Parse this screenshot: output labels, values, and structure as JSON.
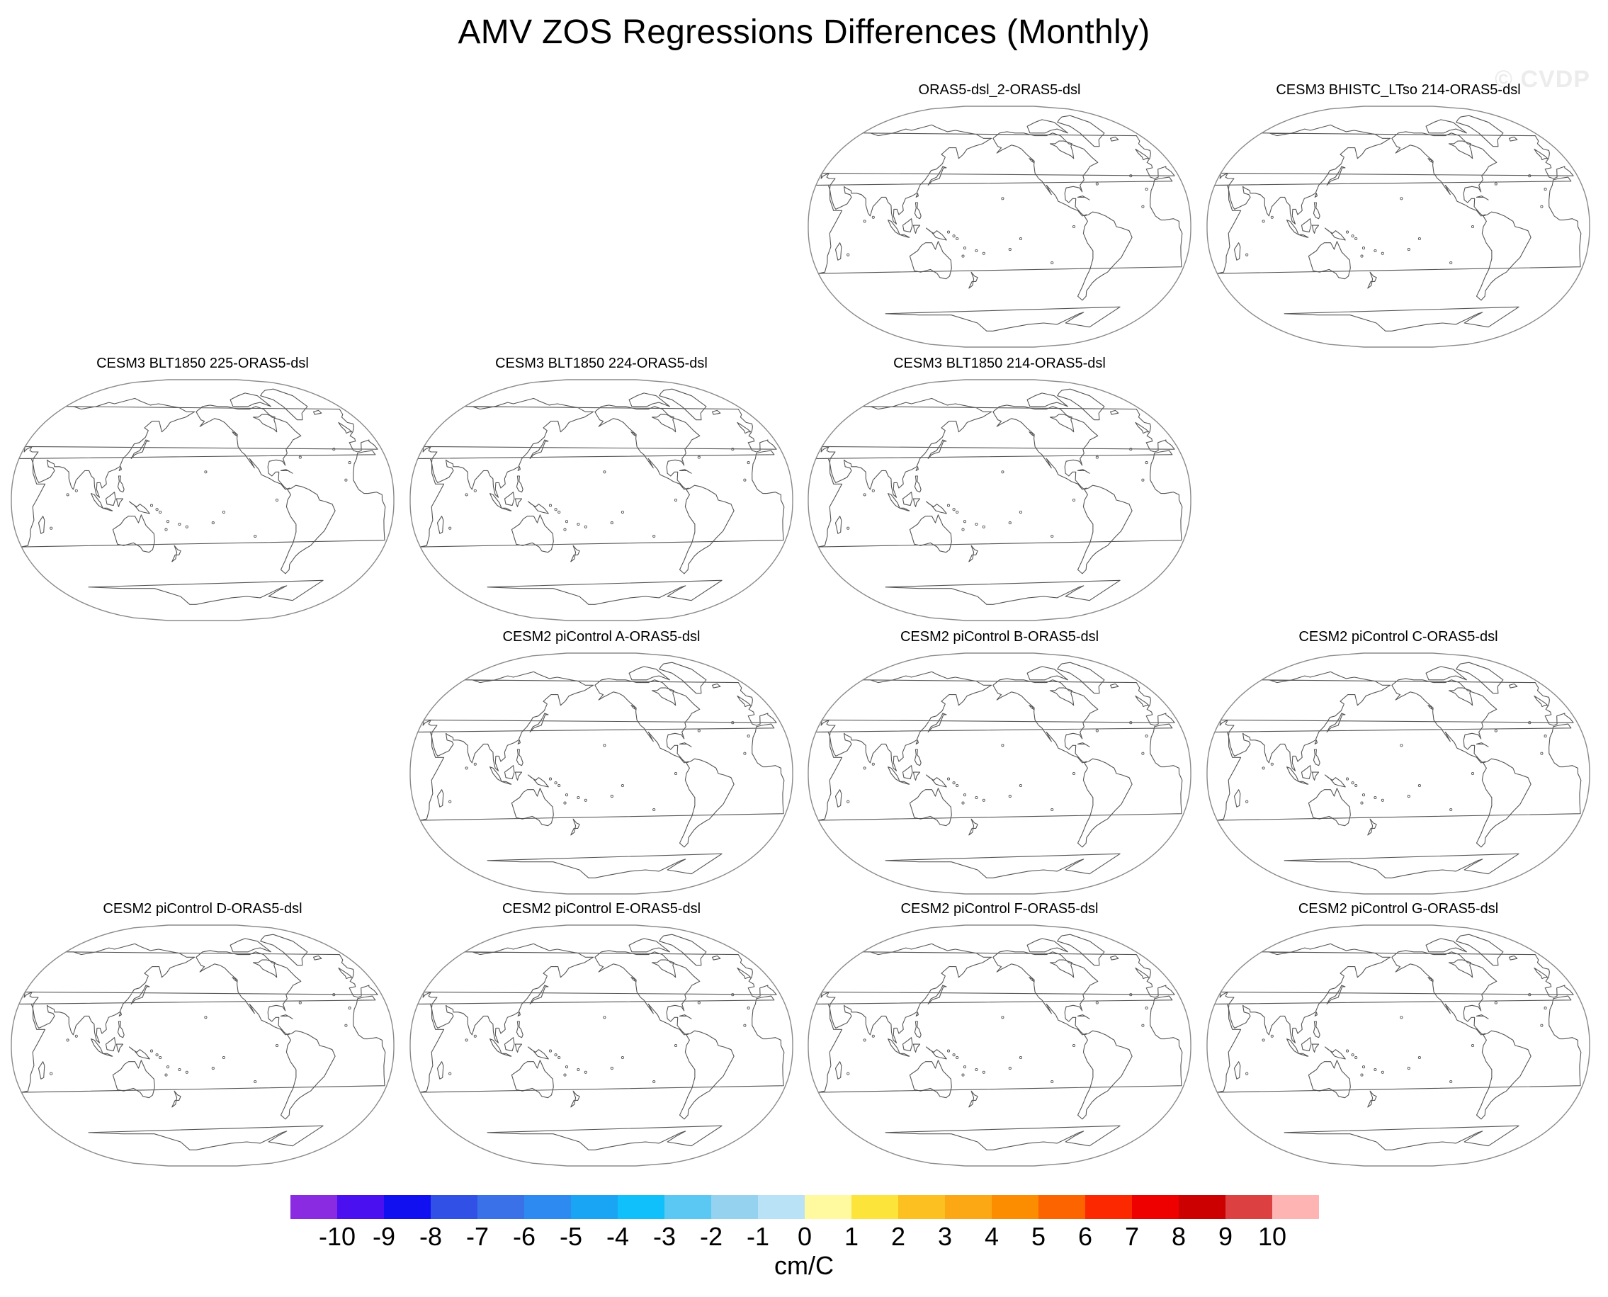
{
  "title": "AMV ZOS Regressions Differences (Monthly)",
  "watermark": "© CVDP",
  "panels": [
    {
      "title": "ORAS5-dsl_2-ORAS5-dsl"
    },
    {
      "title": "CESM3 BHISTC_LTso 214-ORAS5-dsl"
    },
    {
      "title": "CESM3 BLT1850 225-ORAS5-dsl"
    },
    {
      "title": "CESM3 BLT1850 224-ORAS5-dsl"
    },
    {
      "title": "CESM3 BLT1850 214-ORAS5-dsl"
    },
    {
      "title": "CESM2 piControl A-ORAS5-dsl"
    },
    {
      "title": "CESM2 piControl B-ORAS5-dsl"
    },
    {
      "title": "CESM2 piControl C-ORAS5-dsl"
    },
    {
      "title": "CESM2 piControl D-ORAS5-dsl"
    },
    {
      "title": "CESM2 piControl E-ORAS5-dsl"
    },
    {
      "title": "CESM2 piControl F-ORAS5-dsl"
    },
    {
      "title": "CESM2 piControl G-ORAS5-dsl"
    }
  ],
  "colorbar": {
    "units": "cm/C",
    "labels": [
      "-10",
      "-9",
      "-8",
      "-7",
      "-6",
      "-5",
      "-4",
      "-3",
      "-2",
      "-1",
      "0",
      "1",
      "2",
      "3",
      "4",
      "5",
      "6",
      "7",
      "8",
      "9",
      "10"
    ],
    "colors": [
      "#8a2be2",
      "#4b10f0",
      "#1010f0",
      "#3050e6",
      "#3a70e8",
      "#2c8af0",
      "#1aa4f4",
      "#10c0fa",
      "#5ac8f2",
      "#94d2f0",
      "#bae2f6",
      "#fffaa0",
      "#fce43a",
      "#fcc020",
      "#fca814",
      "#fc8c00",
      "#fc6400",
      "#fc2800",
      "#ee0000",
      "#cc0000",
      "#dc4040",
      "#ffb4b4"
    ]
  }
}
